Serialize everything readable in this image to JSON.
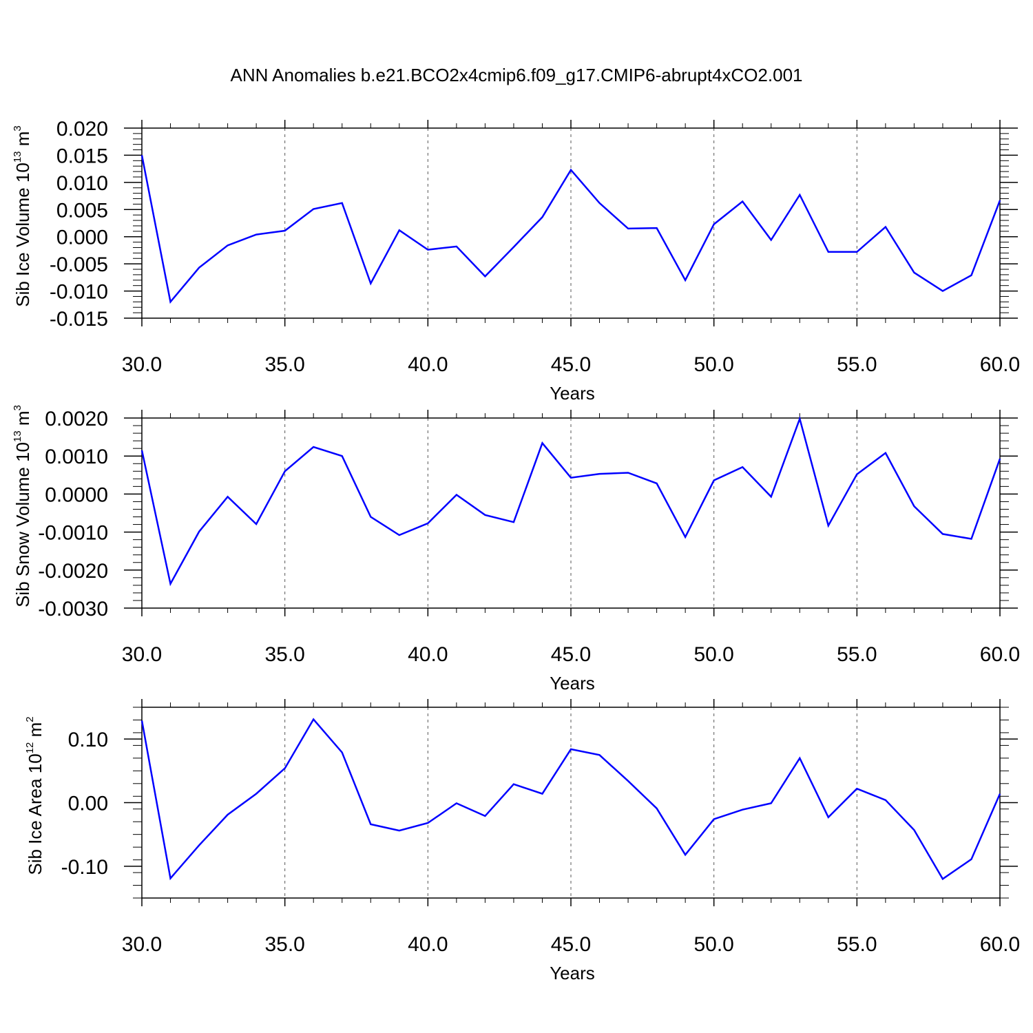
{
  "figure": {
    "title": "ANN Anomalies b.e21.BCO2x4cmip6.f09_g17.CMIP6-abrupt4xCO2.001"
  },
  "chart_data": [
    {
      "type": "line",
      "xlabel": "Years",
      "ylabel": "Sib Ice Volume 10",
      "ylabel_exp": "13",
      "ylabel_unit": " m",
      "ylabel_unit_exp": "3",
      "xlim": [
        30,
        60
      ],
      "ylim": [
        -0.015,
        0.02
      ],
      "xticks": [
        30,
        35,
        40,
        45,
        50,
        55,
        60
      ],
      "xtick_labels": [
        "30.0",
        "35.0",
        "40.0",
        "45.0",
        "50.0",
        "55.0",
        "60.0"
      ],
      "yticks": [
        -0.015,
        -0.01,
        -0.005,
        0.0,
        0.005,
        0.01,
        0.015,
        0.02
      ],
      "ytick_labels": [
        "-0.015",
        "-0.010",
        "-0.005",
        "0.000",
        "0.005",
        "0.010",
        "0.015",
        "0.020"
      ],
      "line_color": "#0000ff",
      "x": [
        30,
        31,
        32,
        33,
        34,
        35,
        36,
        37,
        38,
        39,
        40,
        41,
        42,
        43,
        44,
        45,
        46,
        47,
        48,
        49,
        50,
        51,
        52,
        53,
        54,
        55,
        56,
        57,
        58,
        59,
        60
      ],
      "series": [
        {
          "values": [
            0.015,
            -0.012,
            -0.0057,
            -0.0016,
            0.0004,
            0.0011,
            0.0051,
            0.0062,
            -0.0086,
            0.0012,
            -0.0024,
            -0.0018,
            -0.0073,
            -0.0019,
            0.0036,
            0.0123,
            0.0062,
            0.0015,
            0.0016,
            -0.008,
            0.0023,
            0.0065,
            -0.0006,
            0.0077,
            -0.0028,
            -0.0028,
            0.0018,
            -0.0066,
            -0.01,
            -0.0071,
            0.0067
          ]
        }
      ]
    },
    {
      "type": "line",
      "xlabel": "Years",
      "ylabel": "Sib Snow Volume 10",
      "ylabel_exp": "13",
      "ylabel_unit": " m",
      "ylabel_unit_exp": "3",
      "xlim": [
        30,
        60
      ],
      "ylim": [
        -0.003,
        0.002
      ],
      "xticks": [
        30,
        35,
        40,
        45,
        50,
        55,
        60
      ],
      "xtick_labels": [
        "30.0",
        "35.0",
        "40.0",
        "45.0",
        "50.0",
        "55.0",
        "60.0"
      ],
      "yticks": [
        -0.003,
        -0.002,
        -0.001,
        0.0,
        0.001,
        0.002
      ],
      "ytick_labels": [
        "-0.0030",
        "-0.0020",
        "-0.0010",
        "0.0000",
        "0.0010",
        "0.0020"
      ],
      "line_color": "#0000ff",
      "x": [
        30,
        31,
        32,
        33,
        34,
        35,
        36,
        37,
        38,
        39,
        40,
        41,
        42,
        43,
        44,
        45,
        46,
        47,
        48,
        49,
        50,
        51,
        52,
        53,
        54,
        55,
        56,
        57,
        58,
        59,
        60
      ],
      "series": [
        {
          "values": [
            0.00115,
            -0.00236,
            -0.00099,
            -7e-05,
            -0.00079,
            0.0006,
            0.00124,
            0.001,
            -0.0006,
            -0.00108,
            -0.00077,
            -2e-05,
            -0.00055,
            -0.00074,
            0.00134,
            0.00043,
            0.00053,
            0.00056,
            0.00028,
            -0.00113,
            0.00036,
            0.00071,
            -7e-05,
            0.00198,
            -0.00083,
            0.00052,
            0.00108,
            -0.00032,
            -0.00105,
            -0.00118,
            0.00093
          ]
        }
      ]
    },
    {
      "type": "line",
      "xlabel": "Years",
      "ylabel": "Sib Ice Area 10",
      "ylabel_exp": "12",
      "ylabel_unit": " m",
      "ylabel_unit_exp": "2",
      "xlim": [
        30,
        60
      ],
      "ylim": [
        -0.15,
        0.15
      ],
      "xticks": [
        30,
        35,
        40,
        45,
        50,
        55,
        60
      ],
      "xtick_labels": [
        "30.0",
        "35.0",
        "40.0",
        "45.0",
        "50.0",
        "55.0",
        "60.0"
      ],
      "yticks": [
        -0.1,
        0.0,
        0.1
      ],
      "ytick_labels": [
        "-0.10",
        "0.00",
        "0.10"
      ],
      "line_color": "#0000ff",
      "x": [
        30,
        31,
        32,
        33,
        34,
        35,
        36,
        37,
        38,
        39,
        40,
        41,
        42,
        43,
        44,
        45,
        46,
        47,
        48,
        49,
        50,
        51,
        52,
        53,
        54,
        55,
        56,
        57,
        58,
        59,
        60
      ],
      "series": [
        {
          "values": [
            0.129,
            -0.119,
            -0.067,
            -0.019,
            0.014,
            0.054,
            0.131,
            0.079,
            -0.034,
            -0.044,
            -0.032,
            -0.001,
            -0.021,
            0.029,
            0.014,
            0.084,
            0.075,
            0.034,
            -0.009,
            -0.082,
            -0.026,
            -0.011,
            -0.001,
            0.07,
            -0.023,
            0.022,
            0.004,
            -0.043,
            -0.12,
            -0.089,
            0.014
          ]
        }
      ]
    }
  ]
}
